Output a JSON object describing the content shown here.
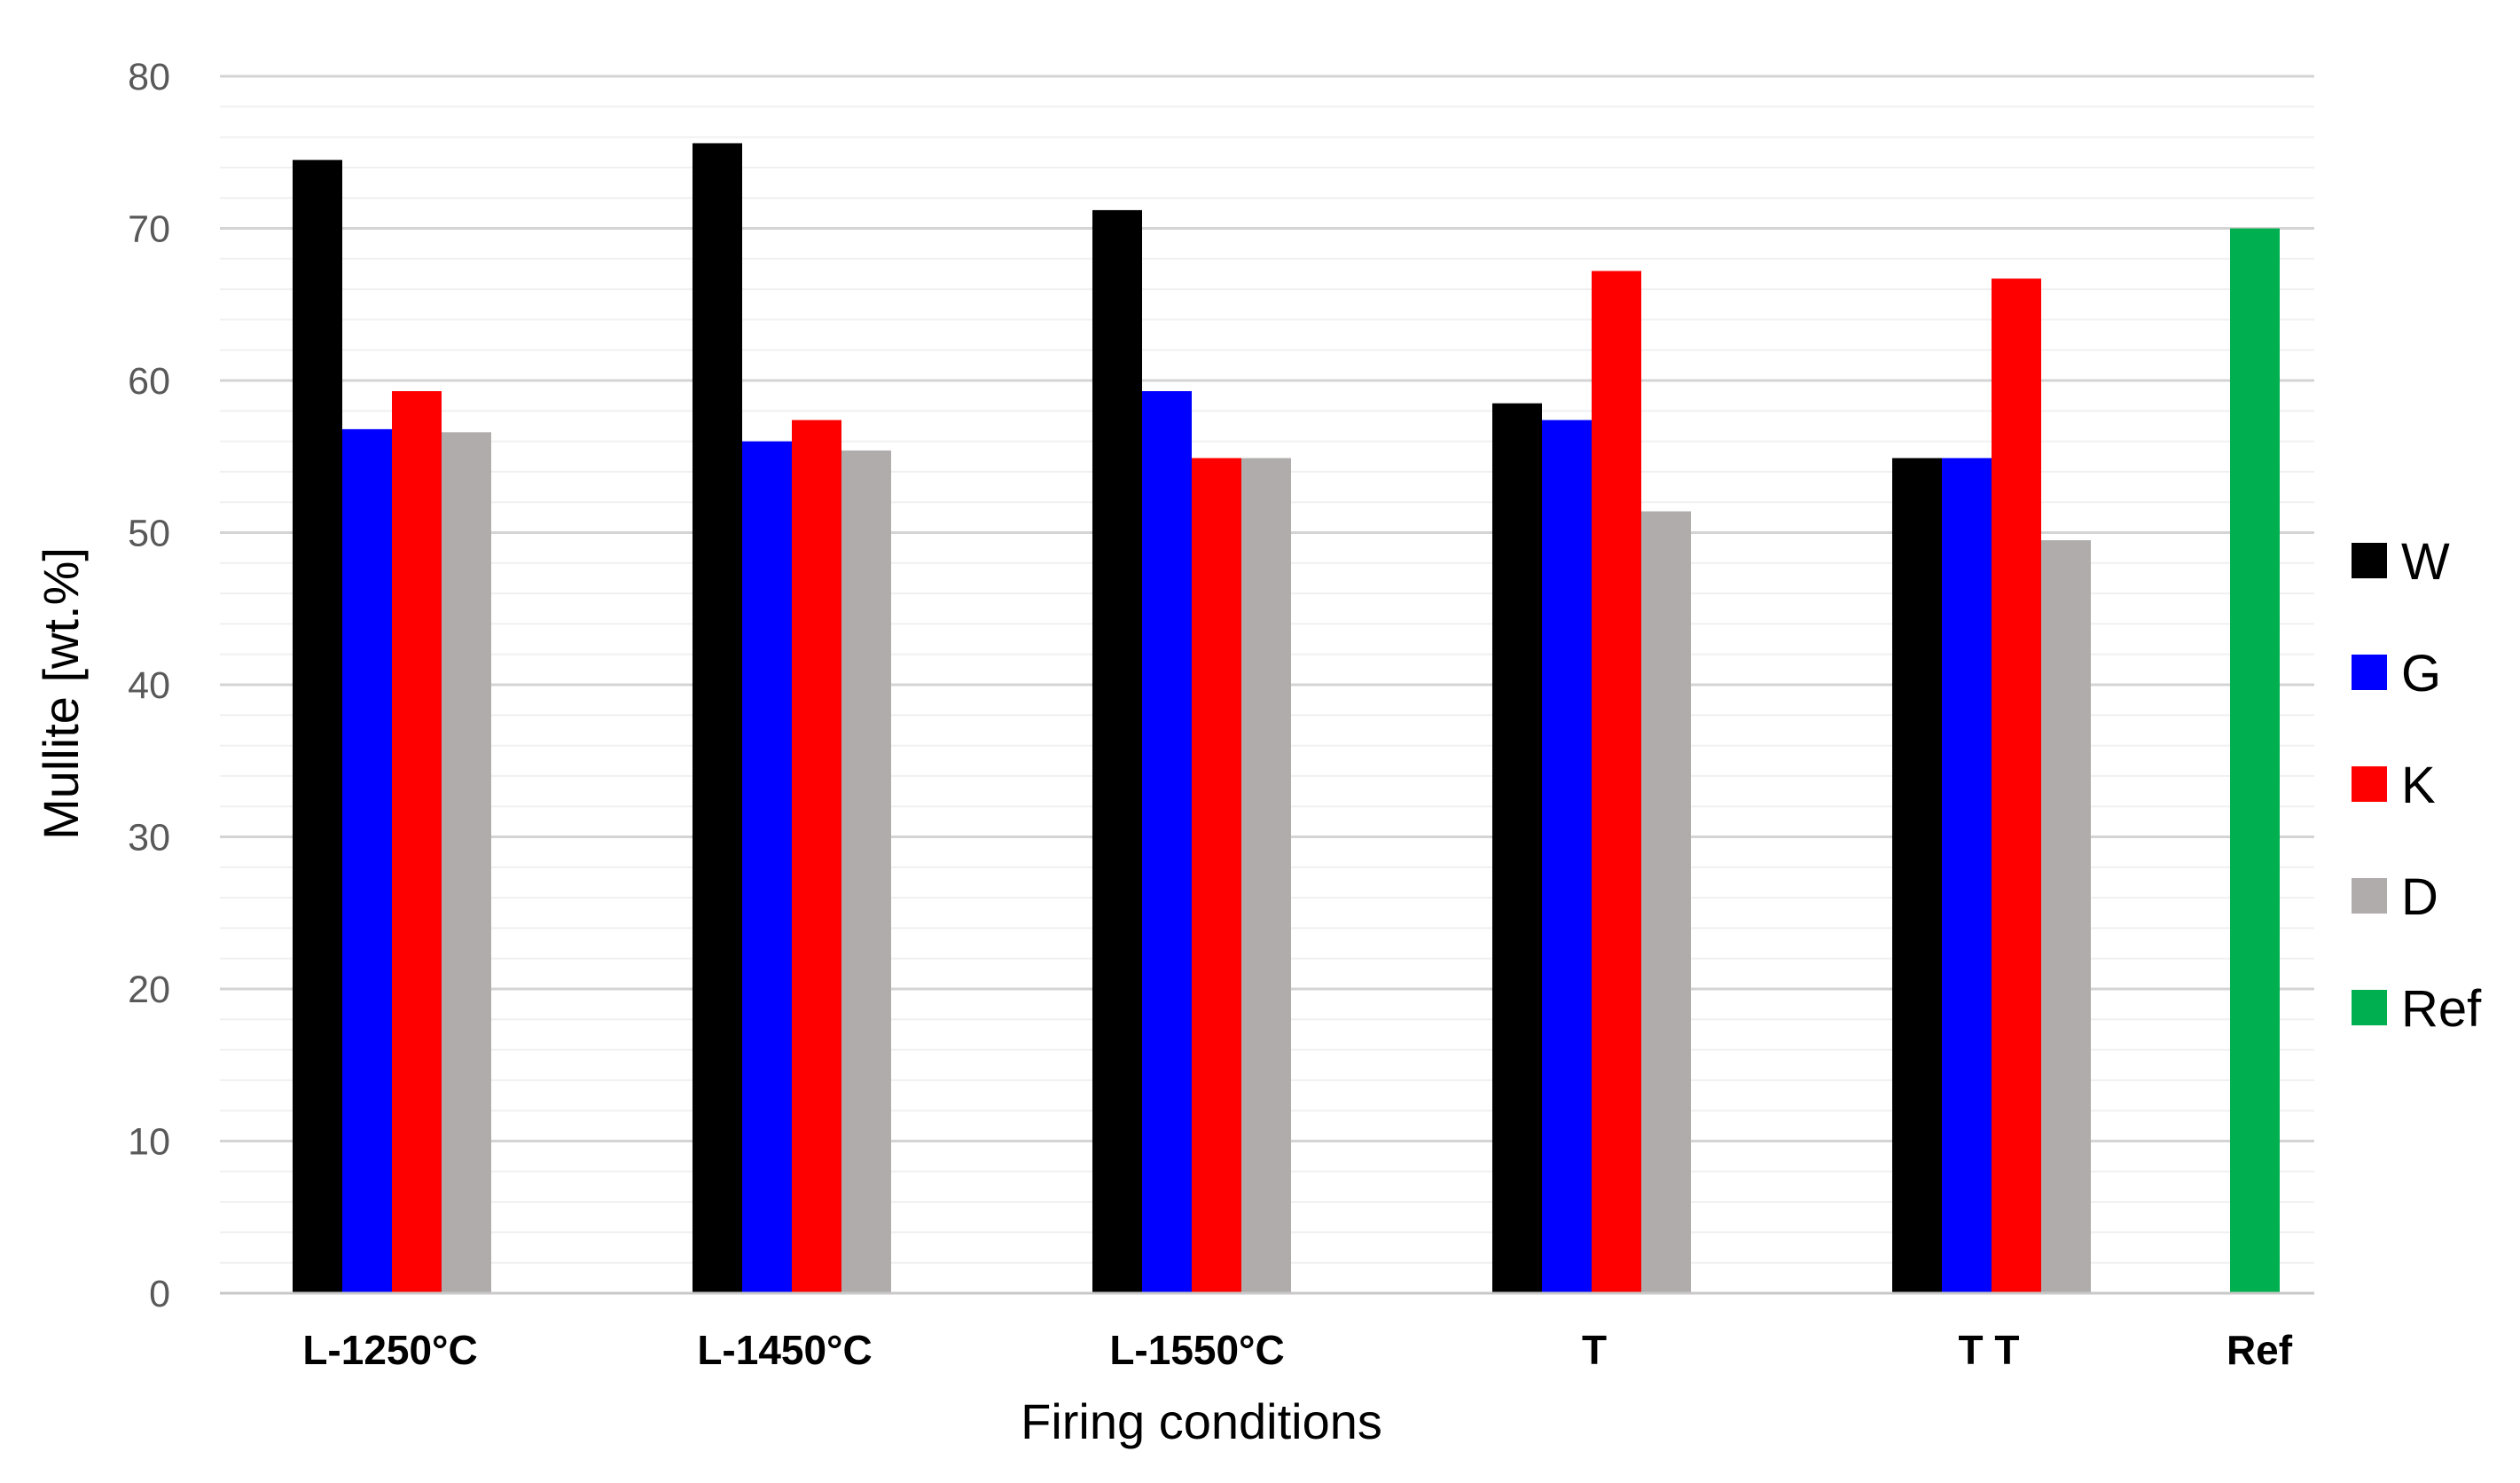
{
  "chart_data": {
    "type": "bar",
    "title": "",
    "xlabel": "Firing conditions",
    "ylabel": "Mullite [wt.%]",
    "ylim": [
      0,
      80
    ],
    "yticks": [
      "0",
      "10",
      "20",
      "30",
      "40",
      "50",
      "60",
      "70",
      "80"
    ],
    "grid": true,
    "legend_position": "right",
    "categories": [
      "L-1250°C",
      "L-1450°C",
      "L-1550°C",
      "T",
      "T T",
      "Ref"
    ],
    "series": [
      {
        "name": "W",
        "color": "#000000",
        "values": [
          74.5,
          75.6,
          71.2,
          58.5,
          54.9,
          null
        ]
      },
      {
        "name": "G",
        "color": "#0000ff",
        "values": [
          56.8,
          56.0,
          59.3,
          57.4,
          54.9,
          null
        ]
      },
      {
        "name": "K",
        "color": "#ff0000",
        "values": [
          59.3,
          57.4,
          54.9,
          67.2,
          66.7,
          null
        ]
      },
      {
        "name": "D",
        "color": "#b0acac",
        "values": [
          56.6,
          55.4,
          54.9,
          51.4,
          49.5,
          null
        ]
      },
      {
        "name": "Ref",
        "color": "#00b050",
        "values": [
          null,
          null,
          null,
          null,
          null,
          70.0
        ]
      }
    ]
  }
}
